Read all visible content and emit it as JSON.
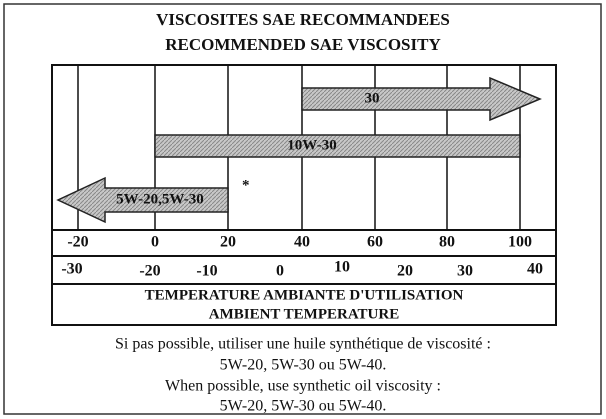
{
  "title": [
    "VISCOSITES SAE RECOMMANDEES",
    "RECOMMENDED SAE VISCOSITY"
  ],
  "grades": [
    "30",
    "10W-30",
    "5W-20,5W-30"
  ],
  "asterisk": "*",
  "fahrenheit_ticks": [
    "-20",
    "0",
    "20",
    "40",
    "60",
    "80",
    "100"
  ],
  "celsius_ticks": [
    "-30",
    "-20",
    "-10",
    "0",
    "10",
    "20",
    "30",
    "40"
  ],
  "axis_label": [
    "TEMPERATURE AMBIANTE D'UTILISATION",
    "AMBIENT TEMPERATURE"
  ],
  "notes": [
    "Si pas possible, utiliser une huile synthétique de viscosité :",
    "5W-20, 5W-30 ou 5W-40.",
    "When possible, use synthetic oil viscosity :",
    "5W-20, 5W-30 ou 5W-40."
  ]
}
